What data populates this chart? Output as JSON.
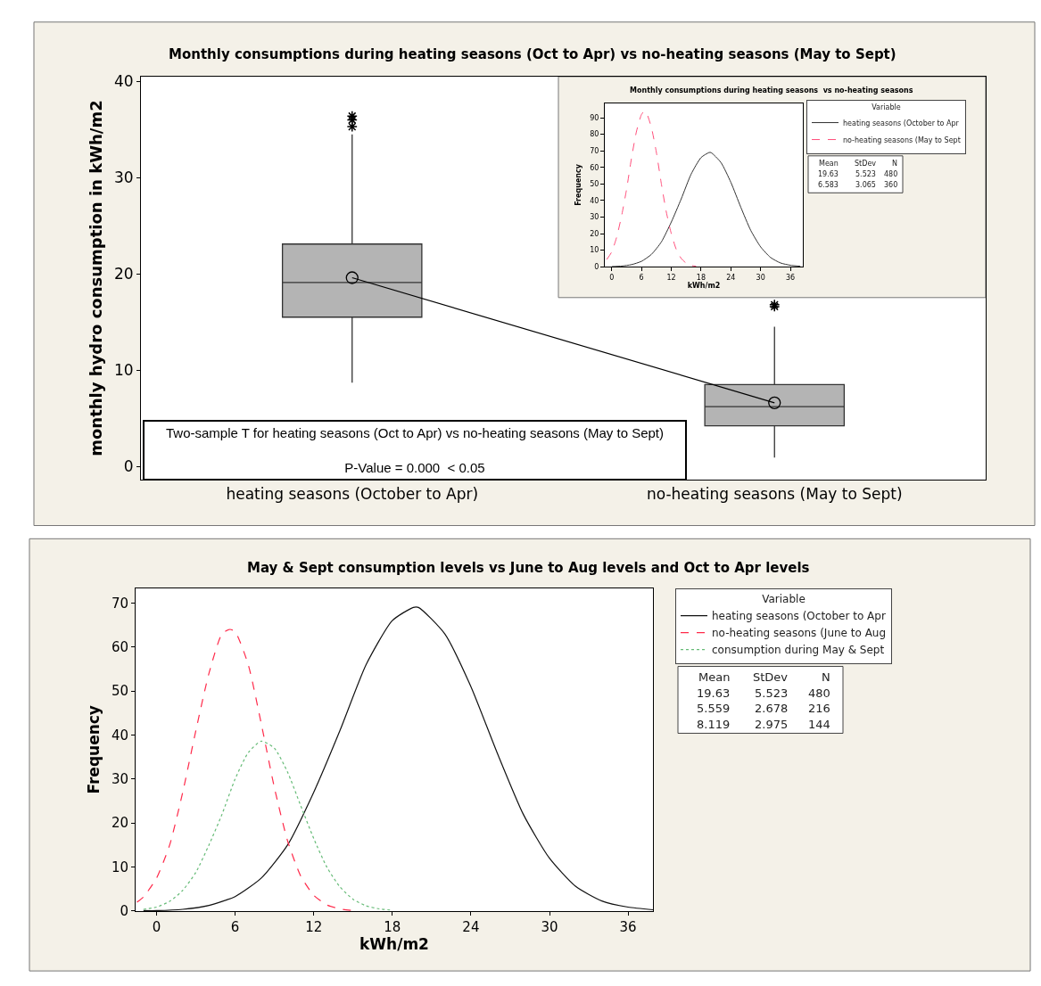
{
  "chart_data": [
    {
      "type": "box",
      "title": "Monthly consumptions during heating seasons (Oct to Apr) vs no-heating seasons (May to Sept)",
      "ylabel": "monthly hydro consumption in kWh/m2",
      "categories": [
        "heating seasons (October to Apr)",
        "no-heating seasons (May to Sept)"
      ],
      "boxes": [
        {
          "low": 8.7,
          "q1": 15.5,
          "median": 19.1,
          "q3": 23.1,
          "high": 34.5,
          "outliers": [
            35.3,
            36.0,
            36.4
          ]
        },
        {
          "low": 0.9,
          "q1": 4.2,
          "median": 6.2,
          "q3": 8.5,
          "high": 14.5,
          "outliers": [
            16.6,
            16.8
          ]
        }
      ],
      "color": "#b4b4b4",
      "series": [
        {
          "type": "line",
          "values": [
            19.6,
            6.6
          ],
          "color": "#000000",
          "marker": "circle"
        }
      ],
      "ylim": [
        -1.4,
        40.5
      ],
      "yticks": [
        0,
        10,
        20,
        30,
        40
      ],
      "grid": false,
      "legend": false,
      "annotations": [
        "Two-sample T for heating seasons (Oct to Apr) vs no-heating seasons (May to Sept)",
        "P-Value = 0.000  < 0.05"
      ]
    },
    {
      "type": "line",
      "title": "Monthly consumptions during heating seasons  vs no-heating seasons",
      "xlabel": "kWh/m2",
      "ylabel": "Frequency",
      "legend_title": "Variable",
      "legend": "right",
      "series": [
        {
          "name": "heating seasons (October to Apr",
          "color": "#333333",
          "line_style": "solid",
          "x": [
            0,
            2,
            4,
            6,
            8,
            10,
            12,
            14,
            16,
            18,
            19.6,
            20,
            22,
            24,
            26,
            28,
            30,
            32,
            34,
            36,
            38
          ],
          "values": [
            0.1,
            0.4,
            1.3,
            3.3,
            7.5,
            15,
            27,
            41,
            56,
            66,
            69,
            69,
            63,
            51,
            36,
            22,
            12,
            5.6,
            2.3,
            0.9,
            0.3
          ]
        },
        {
          "name": "no-heating seasons (May to Sept",
          "color": "#ff4f7b",
          "line_style": "dashed",
          "x": [
            -1,
            0,
            1,
            2,
            3,
            4,
            5,
            6,
            6.6,
            7,
            8,
            9,
            10,
            11,
            12,
            13,
            14,
            15,
            16,
            17
          ],
          "values": [
            4.4,
            9,
            18,
            31,
            47,
            66,
            82,
            92,
            94,
            93,
            84,
            69,
            50,
            33,
            20,
            10.5,
            5,
            2.2,
            0.8,
            0.3
          ]
        }
      ],
      "xlim": [
        -1.4,
        38.5
      ],
      "xticks": [
        0,
        6,
        12,
        18,
        24,
        30,
        36
      ],
      "ylim": [
        0,
        98.9
      ],
      "yticks": [
        0,
        10,
        20,
        30,
        40,
        50,
        60,
        70,
        80,
        90
      ],
      "grid": false,
      "annotations": [
        "Mean StDev N",
        "19.63 5.523 480",
        "6.583 3.065 360"
      ]
    },
    {
      "type": "line",
      "title": "May & Sept consumption levels vs June to Aug levels and Oct to Apr levels",
      "xlabel": "kWh/m2",
      "ylabel": "Frequency",
      "legend_title": "Variable",
      "legend": "right",
      "series": [
        {
          "name": "heating seasons (October to Apr",
          "color": "#111111",
          "line_style": "solid",
          "x": [
            -1,
            0,
            2,
            4,
            6,
            8,
            10,
            12,
            14,
            16,
            18,
            19.6,
            20,
            22,
            24,
            26,
            28,
            30,
            32,
            34,
            36,
            37.9
          ],
          "values": [
            0.1,
            0.1,
            0.4,
            1.3,
            3.3,
            7.5,
            15,
            27,
            41,
            56,
            66,
            69,
            69,
            63,
            51,
            36,
            22,
            12,
            5.6,
            2.3,
            0.9,
            0.3
          ]
        },
        {
          "name": "no-heating seasons (June to Aug",
          "color": "#ff2a4a",
          "line_style": "dashed",
          "x": [
            -1.5,
            -1,
            0,
            1,
            2,
            3,
            4,
            5,
            5.6,
            6,
            7,
            8,
            9,
            10,
            11,
            12,
            13,
            14,
            15
          ],
          "values": [
            2,
            3.2,
            7.5,
            15,
            27,
            41,
            54,
            63,
            64,
            63.5,
            56,
            42.5,
            28,
            16,
            8,
            3.6,
            1.4,
            0.5,
            0.1
          ]
        },
        {
          "name": "consumption during May & Sept",
          "color": "#66bb77",
          "line_style": "dotted",
          "x": [
            -1,
            0,
            1,
            2,
            3,
            4,
            5,
            6,
            7,
            8,
            9,
            10,
            11,
            12,
            13,
            14,
            15,
            16,
            17,
            18
          ],
          "values": [
            0.4,
            0.9,
            2.2,
            4.7,
            8.8,
            15,
            22,
            30,
            36,
            38.6,
            37,
            31.6,
            24,
            16.5,
            10,
            5.5,
            2.7,
            1.2,
            0.5,
            0.2
          ]
        }
      ],
      "xlim": [
        -1.6,
        37.9
      ],
      "xticks": [
        0,
        6,
        12,
        18,
        24,
        30,
        36
      ],
      "ylim": [
        0,
        73.4
      ],
      "yticks": [
        0,
        10,
        20,
        30,
        40,
        50,
        60,
        70
      ],
      "grid": false,
      "annotations": [
        "Mean StDev N",
        "19.63 5.523 480",
        "5.559 2.678 216",
        "8.119 2.975 144"
      ]
    }
  ]
}
